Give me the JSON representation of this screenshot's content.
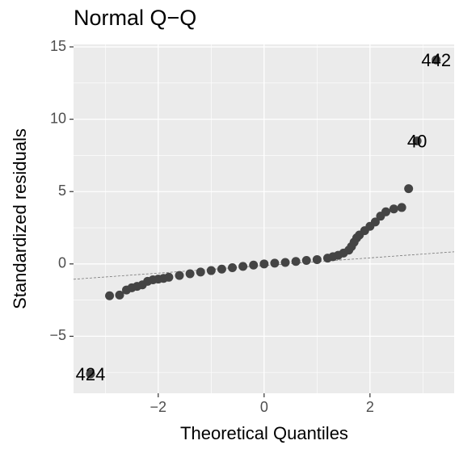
{
  "chart_data": {
    "type": "scatter",
    "title": "Normal Q−Q",
    "x_label": "Theoretical Quantiles",
    "y_label": "Standardized residuals",
    "x": [
      -3.28,
      -2.92,
      -2.73,
      -2.6,
      -2.5,
      -2.4,
      -2.3,
      -2.2,
      -2.1,
      -2.0,
      -1.9,
      -1.8,
      -1.6,
      -1.4,
      -1.2,
      -1.0,
      -0.8,
      -0.6,
      -0.4,
      -0.2,
      0,
      0.2,
      0.4,
      0.6,
      0.8,
      1.0,
      1.2,
      1.3,
      1.4,
      1.5,
      1.6,
      1.65,
      1.7,
      1.75,
      1.8,
      1.9,
      2.0,
      2.1,
      2.2,
      2.3,
      2.45,
      2.6,
      2.73,
      2.89,
      3.25
    ],
    "values": [
      -7.6,
      -2.2,
      -2.15,
      -1.8,
      -1.65,
      -1.55,
      -1.45,
      -1.2,
      -1.1,
      -1.05,
      -1.0,
      -0.92,
      -0.8,
      -0.68,
      -0.56,
      -0.46,
      -0.36,
      -0.26,
      -0.17,
      -0.08,
      0,
      0.05,
      0.1,
      0.17,
      0.24,
      0.3,
      0.4,
      0.5,
      0.6,
      0.75,
      0.95,
      1.2,
      1.5,
      1.8,
      2.0,
      2.3,
      2.6,
      2.9,
      3.3,
      3.6,
      3.8,
      3.9,
      5.2,
      8.5,
      14.1
    ],
    "color": "#444444",
    "annotations": [
      {
        "text": "442",
        "x": 3.25,
        "y": 14.1
      },
      {
        "text": "40",
        "x": 2.89,
        "y": 8.5
      },
      {
        "text": "424",
        "x": -3.28,
        "y": -7.6
      }
    ],
    "reference_line": {
      "slope": 0.264,
      "intercept": -0.11,
      "color": "#777777"
    },
    "xlim": [
      -3.6,
      3.59
    ],
    "ylim": [
      -8.94,
      15.17
    ],
    "xticks": [
      {
        "value": -2,
        "label": "−2"
      },
      0,
      2
    ],
    "yticks": [
      {
        "value": -5,
        "label": "−5"
      },
      0,
      5,
      10,
      15
    ],
    "minor_xticks": [
      -3,
      -1,
      1,
      3
    ],
    "minor_yticks": [
      -7.5,
      -2.5,
      2.5,
      7.5,
      12.5
    ],
    "grid": true
  }
}
